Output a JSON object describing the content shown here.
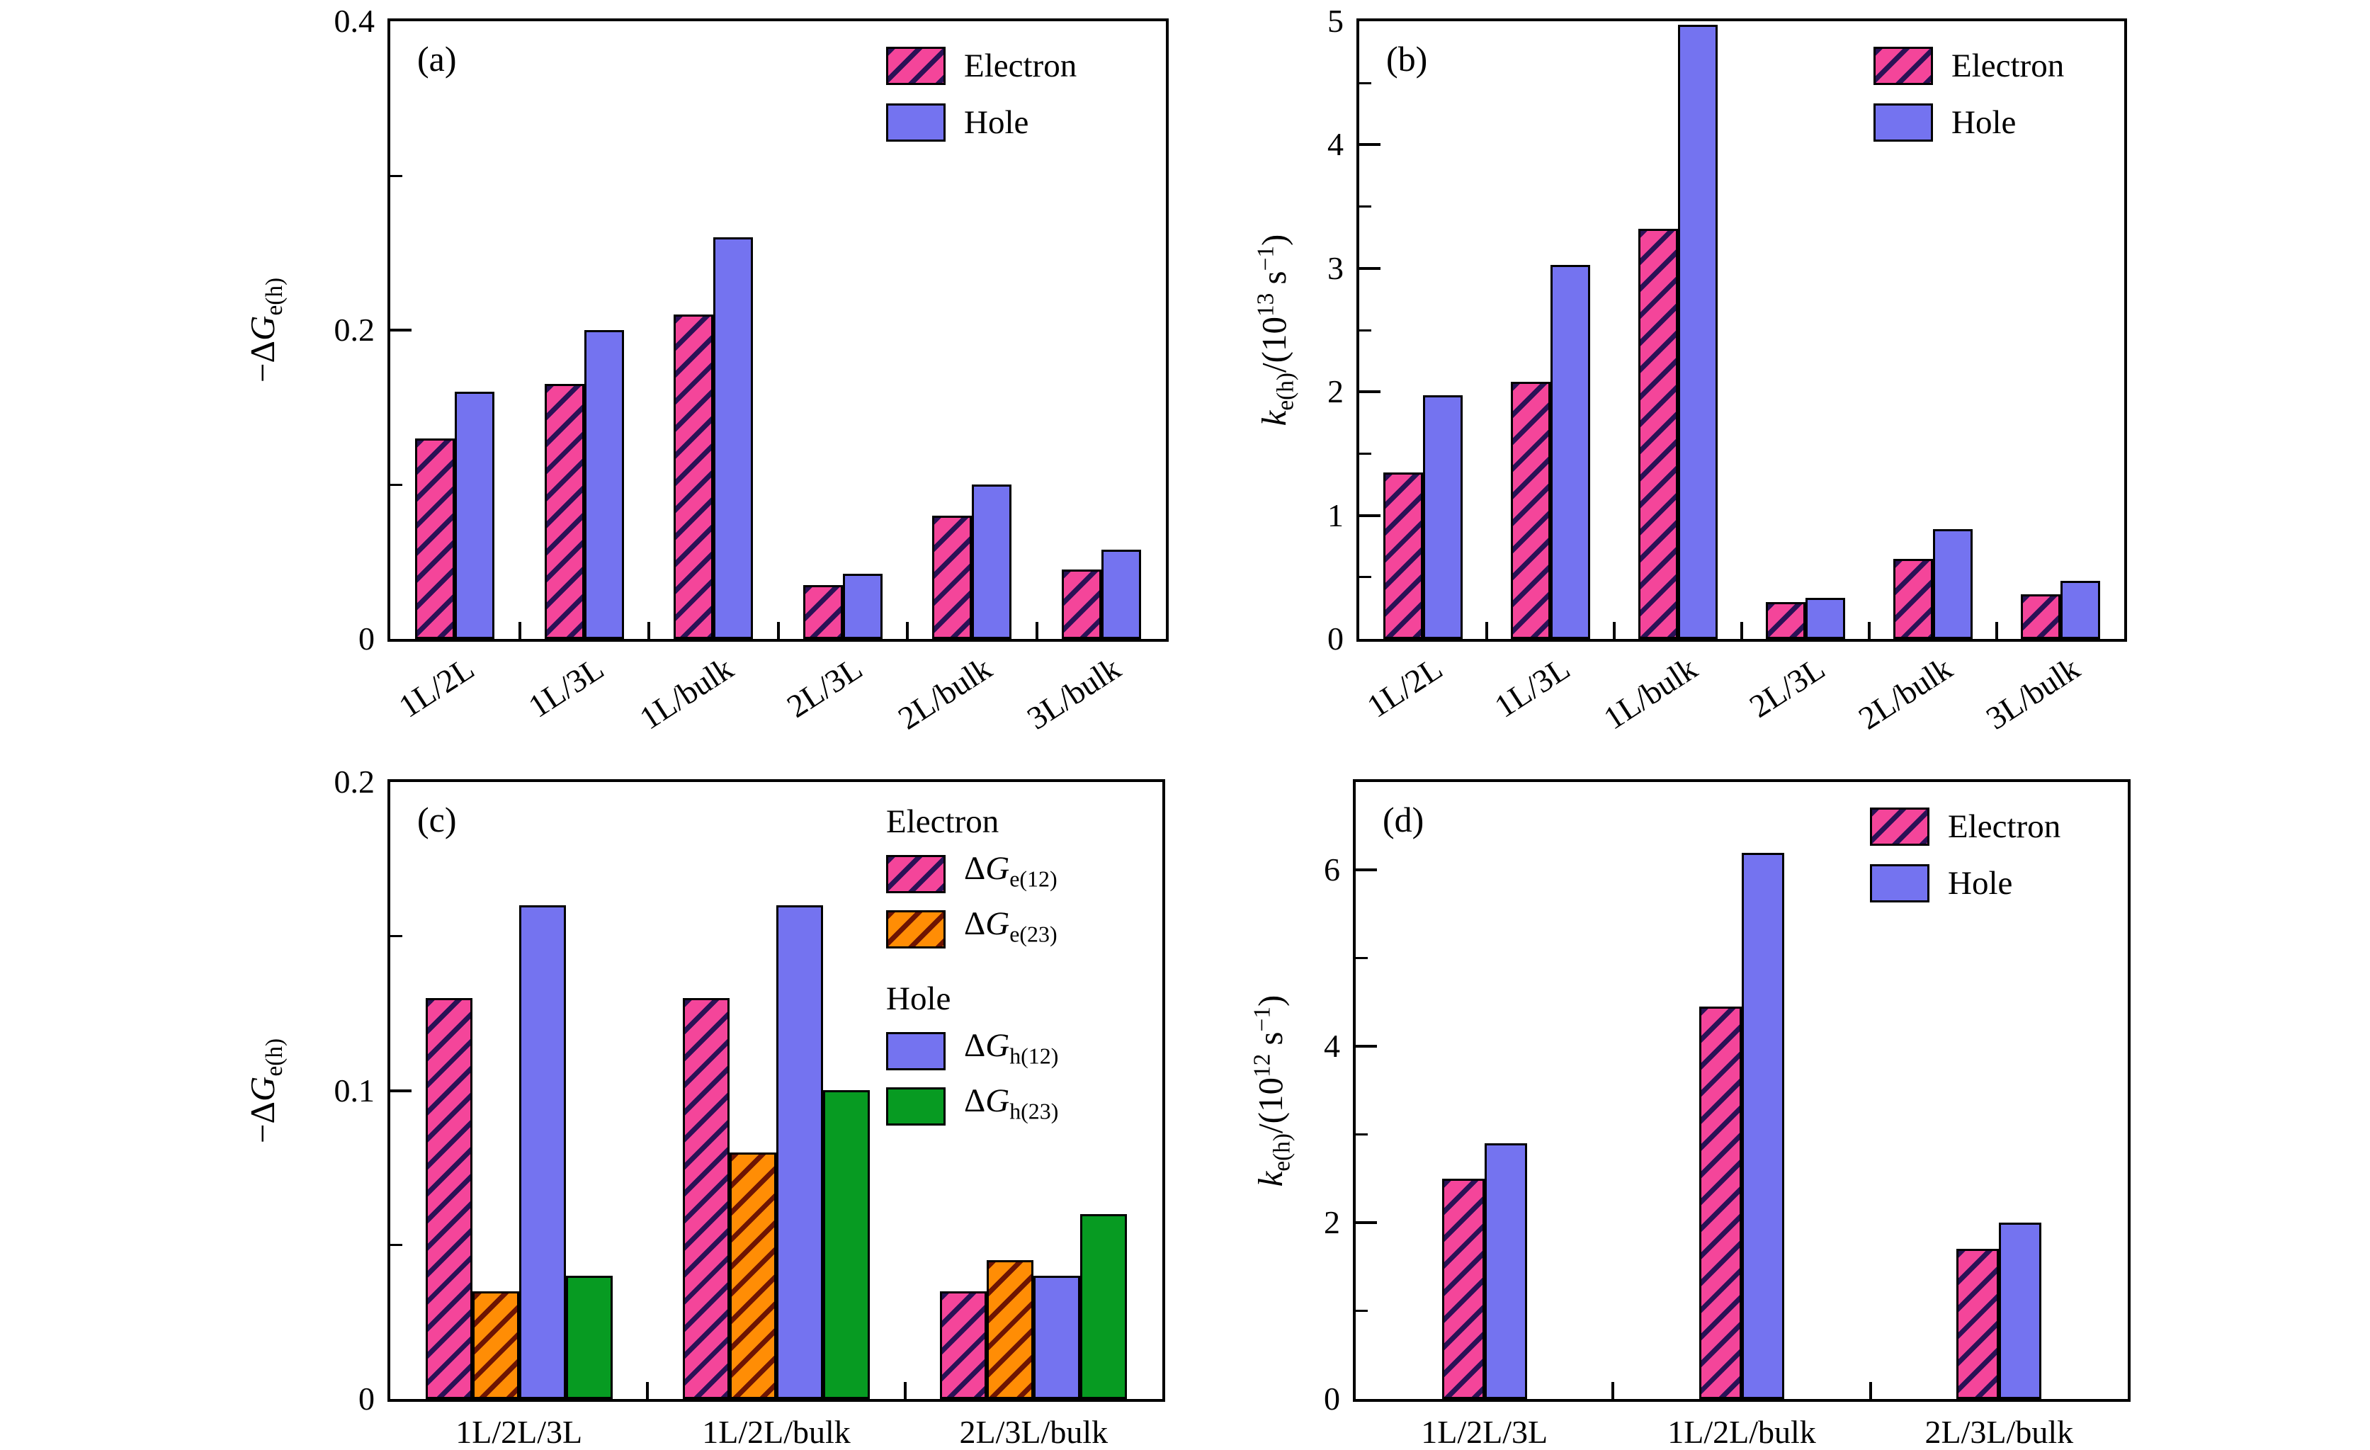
{
  "figure_title": "",
  "chart_data": [
    {
      "id": "a",
      "type": "bar",
      "panel_label": "(a)",
      "ylabel_html": "−Δ<i>G</i><sub>e(h)</sub>",
      "xlabel": "",
      "ylim": [
        0,
        0.4
      ],
      "grid": false,
      "legend_position": "upper-right",
      "yticks": [
        {
          "value": 0,
          "label": "0"
        },
        {
          "value": 0.2,
          "label": "0.2"
        },
        {
          "value": 0.4,
          "label": "0.4"
        }
      ],
      "yminorticks": [
        0.1,
        0.3
      ],
      "categories": [
        "1L/2L",
        "1L/3L",
        "1L/bulk",
        "2L/3L",
        "2L/bulk",
        "3L/bulk"
      ],
      "xtick_labels_rotated": true,
      "series": [
        {
          "name": "Electron",
          "label_html": "Electron",
          "color": "#f4459a",
          "hatch": "/",
          "hatch_color": "#2a1156",
          "values": [
            0.13,
            0.165,
            0.21,
            0.035,
            0.08,
            0.045
          ]
        },
        {
          "name": "Hole",
          "label_html": "Hole",
          "color": "#7473f0",
          "hatch": null,
          "hatch_color": null,
          "values": [
            0.16,
            0.2,
            0.26,
            0.042,
            0.1,
            0.058
          ]
        }
      ],
      "legend": {
        "type": "flat"
      }
    },
    {
      "id": "b",
      "type": "bar",
      "panel_label": "(b)",
      "ylabel_html": "<i>k</i><sub>e(h)</sub>/(10<sup>13</sup> s<sup>−1</sup>)",
      "xlabel": "",
      "ylim": [
        0,
        5
      ],
      "grid": false,
      "legend_position": "upper-right",
      "yticks": [
        {
          "value": 0,
          "label": "0"
        },
        {
          "value": 1,
          "label": "1"
        },
        {
          "value": 2,
          "label": "2"
        },
        {
          "value": 3,
          "label": "3"
        },
        {
          "value": 4,
          "label": "4"
        },
        {
          "value": 5,
          "label": "5"
        }
      ],
      "yminorticks": [
        0.5,
        1.5,
        2.5,
        3.5,
        4.5
      ],
      "categories": [
        "1L/2L",
        "1L/3L",
        "1L/bulk",
        "2L/3L",
        "2L/bulk",
        "3L/bulk"
      ],
      "xtick_labels_rotated": true,
      "series": [
        {
          "name": "Electron",
          "label_html": "Electron",
          "color": "#f4459a",
          "hatch": "/",
          "hatch_color": "#2a1156",
          "values": [
            1.35,
            2.08,
            3.32,
            0.3,
            0.65,
            0.36
          ]
        },
        {
          "name": "Hole",
          "label_html": "Hole",
          "color": "#7473f0",
          "hatch": null,
          "hatch_color": null,
          "values": [
            1.97,
            3.03,
            4.97,
            0.33,
            0.89,
            0.47
          ]
        }
      ],
      "legend": {
        "type": "flat"
      }
    },
    {
      "id": "c",
      "type": "bar",
      "panel_label": "(c)",
      "ylabel_html": "−Δ<i>G</i><sub>e(h)</sub>",
      "xlabel": "",
      "ylim": [
        0,
        0.2
      ],
      "grid": false,
      "legend_position": "upper-right",
      "yticks": [
        {
          "value": 0,
          "label": "0"
        },
        {
          "value": 0.1,
          "label": "0.1"
        },
        {
          "value": 0.2,
          "label": "0.2"
        }
      ],
      "yminorticks": [
        0.05,
        0.15
      ],
      "categories": [
        "1L/2L/3L",
        "1L/2L/bulk",
        "2L/3L/bulk"
      ],
      "xtick_labels_rotated": false,
      "series": [
        {
          "name": "Delta G e(12)",
          "label_html": "Δ<i>G</i><sub>e(12)</sub>",
          "color": "#f4459a",
          "hatch": "/",
          "hatch_color": "#2a1156",
          "values": [
            0.13,
            0.13,
            0.035
          ]
        },
        {
          "name": "Delta G e(23)",
          "label_html": "Δ<i>G</i><sub>e(23)</sub>",
          "color": "#ff8d05",
          "hatch": "/",
          "hatch_color": "#6d1403",
          "values": [
            0.035,
            0.08,
            0.045
          ]
        },
        {
          "name": "Delta G h(12)",
          "label_html": "Δ<i>G</i><sub>h(12)</sub>",
          "color": "#7473f0",
          "hatch": null,
          "hatch_color": null,
          "values": [
            0.16,
            0.16,
            0.04
          ]
        },
        {
          "name": "Delta G h(23)",
          "label_html": "Δ<i>G</i><sub>h(23)</sub>",
          "color": "#079b22",
          "hatch": null,
          "hatch_color": null,
          "values": [
            0.04,
            0.1,
            0.06
          ]
        }
      ],
      "legend": {
        "type": "grouped",
        "groups": [
          {
            "header": "Electron",
            "series": [
              0,
              1
            ]
          },
          {
            "header": "Hole",
            "series": [
              2,
              3
            ]
          }
        ]
      }
    },
    {
      "id": "d",
      "type": "bar",
      "panel_label": "(d)",
      "ylabel_html": "<i>k</i><sub>e(h)</sub>/(10<sup>12</sup> s<sup>−1</sup>)",
      "xlabel": "",
      "ylim": [
        0,
        7
      ],
      "grid": false,
      "legend_position": "upper-right",
      "yticks": [
        {
          "value": 0,
          "label": "0"
        },
        {
          "value": 2,
          "label": "2"
        },
        {
          "value": 4,
          "label": "4"
        },
        {
          "value": 6,
          "label": "6"
        }
      ],
      "yminorticks": [
        1,
        3,
        5
      ],
      "categories": [
        "1L/2L/3L",
        "1L/2L/bulk",
        "2L/3L/bulk"
      ],
      "xtick_labels_rotated": false,
      "series": [
        {
          "name": "Electron",
          "label_html": "Electron",
          "color": "#f4459a",
          "hatch": "/",
          "hatch_color": "#2a1156",
          "values": [
            2.5,
            4.45,
            1.7
          ]
        },
        {
          "name": "Hole",
          "label_html": "Hole",
          "color": "#7473f0",
          "hatch": null,
          "hatch_color": null,
          "values": [
            2.9,
            6.2,
            2.0
          ]
        }
      ],
      "legend": {
        "type": "flat"
      }
    }
  ]
}
